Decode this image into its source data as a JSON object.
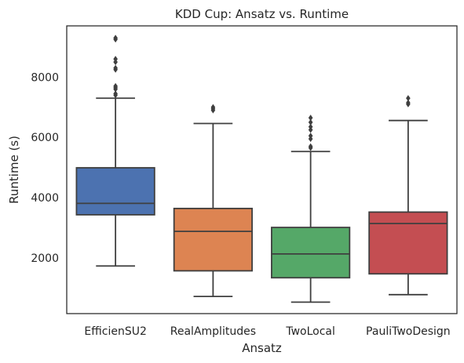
{
  "chart_data": {
    "type": "box",
    "title": "KDD Cup: Ansatz vs. Runtime",
    "xlabel": "Ansatz",
    "ylabel": "Runtime (s)",
    "ylim": [
      150,
      9700
    ],
    "yticks": [
      2000,
      4000,
      6000,
      8000
    ],
    "yticklabels": [
      "2000",
      "4000",
      "6000",
      "8000"
    ],
    "grid": false,
    "categories": [
      "EfficienSU2",
      "RealAmplitudes",
      "TwoLocal",
      "PauliTwoDesign"
    ],
    "colors": [
      "#4c72b0",
      "#dd8452",
      "#55a868",
      "#c44e52"
    ],
    "boxes": [
      {
        "category": "EfficienSU2",
        "whisker_low": 1730,
        "q1": 3430,
        "median": 3810,
        "q3": 4990,
        "whisker_high": 7300,
        "outliers": [
          7400,
          7450,
          7600,
          7650,
          7700,
          8250,
          8300,
          8500,
          8600,
          9250,
          9300
        ]
      },
      {
        "category": "RealAmplitudes",
        "whisker_low": 720,
        "q1": 1570,
        "median": 2880,
        "q3": 3640,
        "whisker_high": 6460,
        "outliers": [
          6900,
          6950,
          7000
        ]
      },
      {
        "category": "TwoLocal",
        "whisker_low": 530,
        "q1": 1340,
        "median": 2130,
        "q3": 3010,
        "whisker_high": 5530,
        "outliers": [
          5650,
          5700,
          5950,
          6050,
          6250,
          6350,
          6500,
          6650
        ]
      },
      {
        "category": "PauliTwoDesign",
        "whisker_low": 780,
        "q1": 1470,
        "median": 3140,
        "q3": 3520,
        "whisker_high": 6560,
        "outliers": [
          7100,
          7150,
          7300
        ]
      }
    ]
  }
}
